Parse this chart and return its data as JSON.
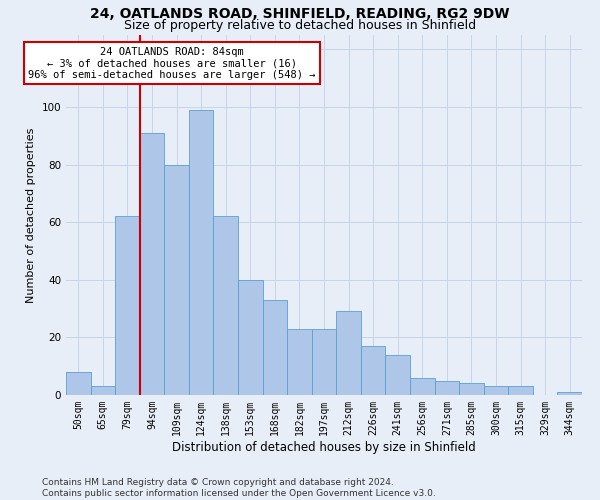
{
  "title_line1": "24, OATLANDS ROAD, SHINFIELD, READING, RG2 9DW",
  "title_line2": "Size of property relative to detached houses in Shinfield",
  "xlabel": "Distribution of detached houses by size in Shinfield",
  "ylabel": "Number of detached properties",
  "bar_labels": [
    "50sqm",
    "65sqm",
    "79sqm",
    "94sqm",
    "109sqm",
    "124sqm",
    "138sqm",
    "153sqm",
    "168sqm",
    "182sqm",
    "197sqm",
    "212sqm",
    "226sqm",
    "241sqm",
    "256sqm",
    "271sqm",
    "285sqm",
    "300sqm",
    "315sqm",
    "329sqm",
    "344sqm"
  ],
  "bar_values": [
    8,
    3,
    62,
    91,
    80,
    99,
    62,
    40,
    33,
    23,
    23,
    29,
    17,
    14,
    6,
    5,
    4,
    3,
    3,
    0,
    1
  ],
  "bar_color": "#aec6e8",
  "bar_edge_color": "#5a9fd4",
  "vline_index": 2,
  "vline_color": "#cc0000",
  "annotation_text": "24 OATLANDS ROAD: 84sqm\n← 3% of detached houses are smaller (16)\n96% of semi-detached houses are larger (548) →",
  "annotation_box_color": "#ffffff",
  "annotation_box_edge": "#cc0000",
  "ylim": [
    0,
    125
  ],
  "yticks": [
    0,
    20,
    40,
    60,
    80,
    100,
    120
  ],
  "grid_color": "#c8d4e8",
  "bg_color": "#e8eef8",
  "footer": "Contains HM Land Registry data © Crown copyright and database right 2024.\nContains public sector information licensed under the Open Government Licence v3.0.",
  "title_fontsize": 10,
  "subtitle_fontsize": 9,
  "tick_fontsize": 7,
  "ylabel_fontsize": 8,
  "xlabel_fontsize": 8.5,
  "footer_fontsize": 6.5
}
